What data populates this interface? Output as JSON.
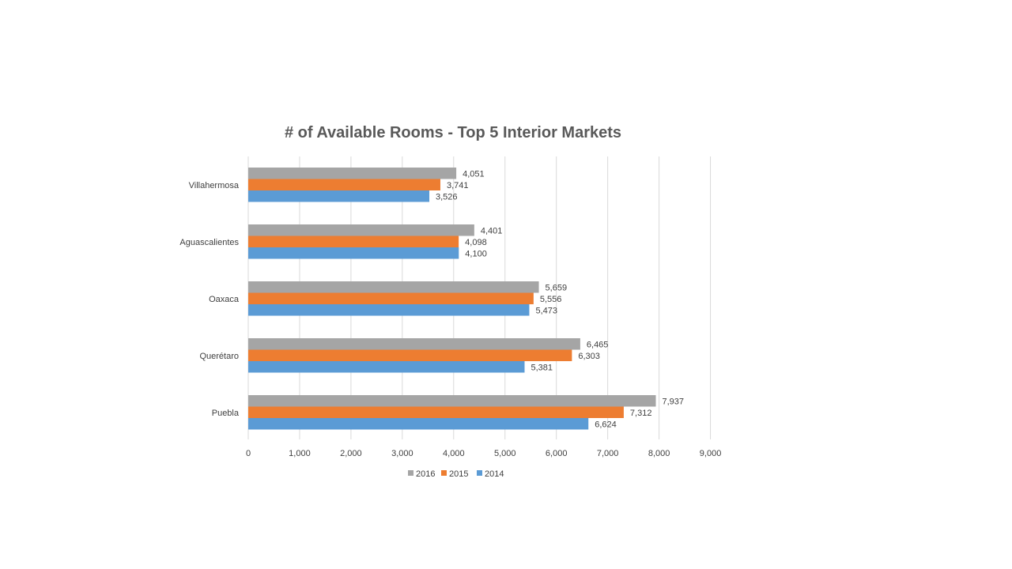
{
  "chart_data": {
    "type": "bar",
    "orientation": "horizontal",
    "title": "# of Available Rooms - Top 5 Interior Markets",
    "xlabel": "",
    "ylabel": "",
    "categories": [
      "Villahermosa",
      "Aguascalientes",
      "Oaxaca",
      "Querétaro",
      "Puebla"
    ],
    "series": [
      {
        "name": "2016",
        "color": "#a5a5a5",
        "values": [
          4051,
          4401,
          5659,
          6465,
          7937
        ]
      },
      {
        "name": "2015",
        "color": "#ed7d31",
        "values": [
          3741,
          4098,
          5556,
          6303,
          7312
        ]
      },
      {
        "name": "2014",
        "color": "#5b9bd5",
        "values": [
          3526,
          4100,
          5473,
          5381,
          6624
        ]
      }
    ],
    "data_labels": [
      [
        "4,051",
        "4,401",
        "5,659",
        "6,465",
        "7,937"
      ],
      [
        "3,741",
        "4,098",
        "5,556",
        "6,303",
        "7,312"
      ],
      [
        "3,526",
        "4,100",
        "5,473",
        "5,381",
        "6,624"
      ]
    ],
    "xlim": [
      0,
      9000
    ],
    "xticks": [
      0,
      1000,
      2000,
      3000,
      4000,
      5000,
      6000,
      7000,
      8000,
      9000
    ],
    "xtick_labels": [
      "0",
      "1,000",
      "2,000",
      "3,000",
      "4,000",
      "5,000",
      "6,000",
      "7,000",
      "8,000",
      "9,000"
    ],
    "grid": true,
    "legend_position": "bottom"
  }
}
